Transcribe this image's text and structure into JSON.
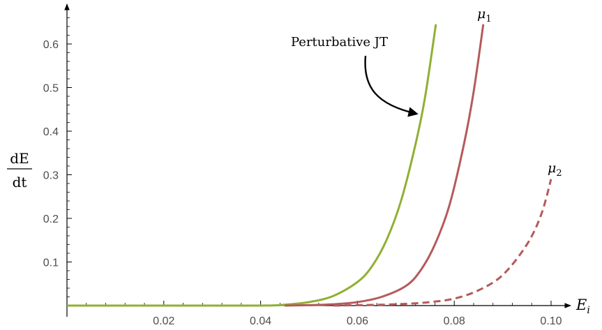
{
  "chart_data": {
    "type": "line",
    "title": "",
    "xlabel": "E",
    "xlabel_sub": "i",
    "ylabel_num": "dE",
    "ylabel_den": "dt",
    "xlim": [
      0,
      0.102
    ],
    "ylim": [
      0,
      0.66
    ],
    "x_ticks": [
      0.02,
      0.04,
      0.06,
      0.08,
      0.1
    ],
    "x_tick_labels": [
      "0.02",
      "0.04",
      "0.06",
      "0.08",
      "0.10"
    ],
    "y_ticks": [
      0.1,
      0.2,
      0.3,
      0.4,
      0.5,
      0.6
    ],
    "y_tick_labels": [
      "0.1",
      "0.2",
      "0.3",
      "0.4",
      "0.5",
      "0.6"
    ],
    "grid": false,
    "legend": "none",
    "series": [
      {
        "label": "",
        "color": "#8fb032",
        "dash": "solid",
        "x": [
          0.0,
          0.02,
          0.04,
          0.045,
          0.05,
          0.055,
          0.06,
          0.063,
          0.066,
          0.069,
          0.072,
          0.074,
          0.0762
        ],
        "y": [
          0.0,
          0.0,
          0.0,
          0.002,
          0.008,
          0.022,
          0.054,
          0.09,
          0.15,
          0.24,
          0.37,
          0.48,
          0.645
        ]
      },
      {
        "label": "μ",
        "label_sub": "1",
        "color": "#b45a5c",
        "dash": "solid",
        "x": [
          0.045,
          0.05,
          0.055,
          0.06,
          0.065,
          0.07,
          0.073,
          0.076,
          0.079,
          0.082,
          0.084,
          0.086
        ],
        "y": [
          0.0,
          0.001,
          0.003,
          0.008,
          0.02,
          0.045,
          0.08,
          0.14,
          0.23,
          0.37,
          0.49,
          0.645
        ]
      },
      {
        "label": "μ",
        "label_sub": "2",
        "color": "#b45a5c",
        "dash": "dashed",
        "x": [
          0.055,
          0.06,
          0.065,
          0.07,
          0.075,
          0.08,
          0.085,
          0.09,
          0.095,
          0.098,
          0.1
        ],
        "y": [
          0.0,
          0.001,
          0.002,
          0.004,
          0.008,
          0.016,
          0.035,
          0.07,
          0.14,
          0.21,
          0.29
        ]
      }
    ],
    "annotations": [
      {
        "text": "Perturbative JT",
        "arrow_to_series": 0
      }
    ]
  }
}
